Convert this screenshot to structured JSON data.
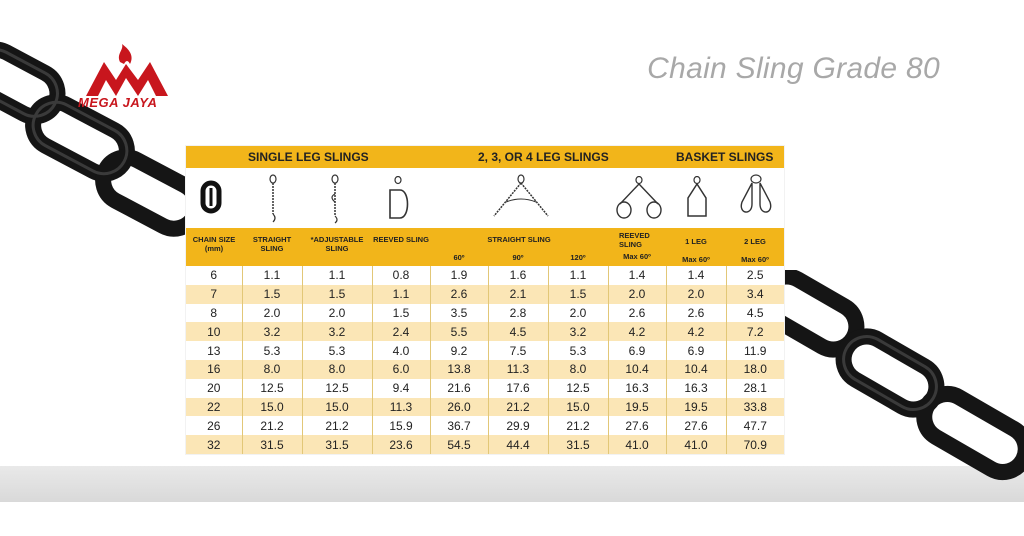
{
  "brand": {
    "name": "MEGA JAYA"
  },
  "title": "Chain Sling Grade 80",
  "groups": {
    "single": "SINGLE LEG SLINGS",
    "multi": "2, 3, OR 4 LEG SLINGS",
    "basket": "BASKET SLINGS"
  },
  "headers": {
    "chain_size": "CHAIN SIZE",
    "chain_size_unit": "(mm)",
    "straight": "STRAIGHT SLING",
    "adjustable": "*ADJUSTABLE SLING",
    "reeved": "REEVED SLING",
    "straight_multi": "STRAIGHT SLING",
    "a60": "60º",
    "a90": "90º",
    "a120": "120º",
    "reeved_multi": "REEVED SLING",
    "reeved_max": "Max 60º",
    "leg1": "1 LEG",
    "leg1_max": "Max 60º",
    "leg2": "2 LEG",
    "leg2_max": "Max 60º"
  },
  "icons": [
    "chain-link-icon",
    "straight-sling-icon",
    "adjustable-sling-icon",
    "reeved-sling-icon",
    "multi-leg-sling-icon",
    "reeved-multi-sling-icon",
    "basket-1-leg-icon",
    "basket-2-leg-icon"
  ],
  "colors": {
    "accent": "#f2b51a",
    "stripe": "#fbe6b6",
    "brand": "#c8161d"
  },
  "rows": [
    [
      "6",
      "1.1",
      "1.1",
      "0.8",
      "1.9",
      "1.6",
      "1.1",
      "1.4",
      "1.4",
      "2.5"
    ],
    [
      "7",
      "1.5",
      "1.5",
      "1.1",
      "2.6",
      "2.1",
      "1.5",
      "2.0",
      "2.0",
      "3.4"
    ],
    [
      "8",
      "2.0",
      "2.0",
      "1.5",
      "3.5",
      "2.8",
      "2.0",
      "2.6",
      "2.6",
      "4.5"
    ],
    [
      "10",
      "3.2",
      "3.2",
      "2.4",
      "5.5",
      "4.5",
      "3.2",
      "4.2",
      "4.2",
      "7.2"
    ],
    [
      "13",
      "5.3",
      "5.3",
      "4.0",
      "9.2",
      "7.5",
      "5.3",
      "6.9",
      "6.9",
      "11.9"
    ],
    [
      "16",
      "8.0",
      "8.0",
      "6.0",
      "13.8",
      "11.3",
      "8.0",
      "10.4",
      "10.4",
      "18.0"
    ],
    [
      "20",
      "12.5",
      "12.5",
      "9.4",
      "21.6",
      "17.6",
      "12.5",
      "16.3",
      "16.3",
      "28.1"
    ],
    [
      "22",
      "15.0",
      "15.0",
      "11.3",
      "26.0",
      "21.2",
      "15.0",
      "19.5",
      "19.5",
      "33.8"
    ],
    [
      "26",
      "21.2",
      "21.2",
      "15.9",
      "36.7",
      "29.9",
      "21.2",
      "27.6",
      "27.6",
      "47.7"
    ],
    [
      "32",
      "31.5",
      "31.5",
      "23.6",
      "54.5",
      "44.4",
      "31.5",
      "41.0",
      "41.0",
      "70.9"
    ]
  ]
}
